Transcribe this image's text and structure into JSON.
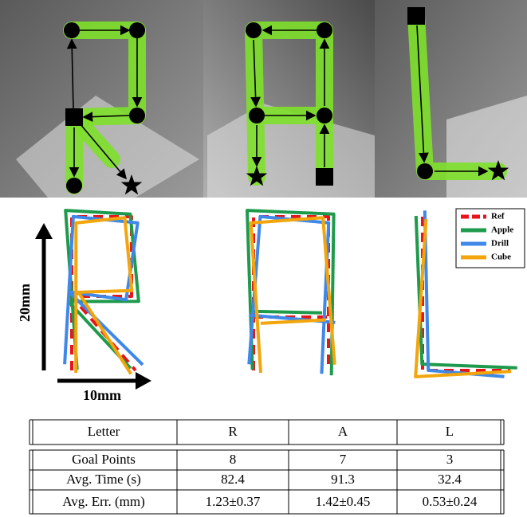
{
  "figure": {
    "scale_y": "20mm",
    "scale_x": "10mm",
    "legend": [
      {
        "name": "Ref",
        "color": "#e8141c"
      },
      {
        "name": "Apple",
        "color": "#1e9a4c"
      },
      {
        "name": "Drill",
        "color": "#3f88e8"
      },
      {
        "name": "Cube",
        "color": "#f2a50c"
      }
    ]
  },
  "table": {
    "header": [
      "Letter",
      "R",
      "A",
      "L"
    ],
    "rows": [
      [
        "Goal Points",
        8,
        7,
        3
      ],
      [
        "Avg. Time (s)",
        82.4,
        91.3,
        32.4
      ],
      [
        "Avg. Err. (mm)",
        "1.23±0.37",
        "1.42±0.45",
        "0.53±0.24"
      ]
    ]
  }
}
